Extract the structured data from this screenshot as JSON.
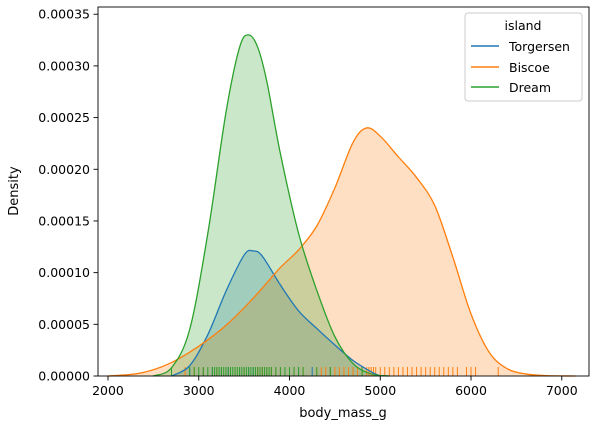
{
  "chart_data": {
    "type": "area",
    "xlabel": "body_mass_g",
    "ylabel": "Density",
    "xlim": [
      1890,
      7300
    ],
    "ylim": [
      0,
      0.000357
    ],
    "x_ticks": [
      {
        "value": 2000,
        "label": "2000"
      },
      {
        "value": 3000,
        "label": "3000"
      },
      {
        "value": 4000,
        "label": "4000"
      },
      {
        "value": 5000,
        "label": "5000"
      },
      {
        "value": 6000,
        "label": "6000"
      },
      {
        "value": 7000,
        "label": "7000"
      }
    ],
    "y_ticks": [
      {
        "value": 0,
        "label": "0.00000"
      },
      {
        "value": 5e-05,
        "label": "0.00005"
      },
      {
        "value": 0.0001,
        "label": "0.00010"
      },
      {
        "value": 0.00015,
        "label": "0.00015"
      },
      {
        "value": 0.0002,
        "label": "0.00020"
      },
      {
        "value": 0.00025,
        "label": "0.00025"
      },
      {
        "value": 0.0003,
        "label": "0.00030"
      },
      {
        "value": 0.00035,
        "label": "0.00035"
      }
    ],
    "legend": {
      "title": "island",
      "placement": "top-right"
    },
    "series": [
      {
        "name": "Torgersen",
        "color": "#1f77b4",
        "x": [
          2700,
          2900,
          3100,
          3300,
          3500,
          3600,
          3700,
          3900,
          4100,
          4300,
          4500,
          4700,
          4900,
          5000
        ],
        "y": [
          0,
          1e-05,
          4e-05,
          8.2e-05,
          0.000117,
          0.000121,
          0.000116,
          8.8e-05,
          6.3e-05,
          4.6e-05,
          3e-05,
          1.5e-05,
          4e-06,
          0
        ],
        "rug": [
          2900,
          3050,
          3150,
          3200,
          3250,
          3300,
          3325,
          3350,
          3400,
          3450,
          3500,
          3550,
          3600,
          3650,
          3700,
          3750,
          3800,
          3850,
          3900,
          4000,
          4100,
          4250,
          4450,
          4700
        ]
      },
      {
        "name": "Biscoe",
        "color": "#ff7f0e",
        "x": [
          2000,
          2300,
          2500,
          2700,
          2900,
          3100,
          3300,
          3500,
          3700,
          3900,
          4100,
          4300,
          4500,
          4700,
          4850,
          5000,
          5200,
          5400,
          5600,
          5800,
          6000,
          6200,
          6400,
          6600,
          6800,
          7000,
          7150
        ],
        "y": [
          0,
          2e-06,
          6e-06,
          1.3e-05,
          2.3e-05,
          3.5e-05,
          4.9e-05,
          6.6e-05,
          8.5e-05,
          0.000105,
          0.000122,
          0.000145,
          0.000182,
          0.000226,
          0.00024,
          0.000232,
          0.000212,
          0.000192,
          0.000165,
          0.000115,
          6e-05,
          2.3e-05,
          7e-06,
          2e-06,
          5e-07,
          1e-07,
          0
        ],
        "rug": [
          2850,
          2950,
          3050,
          3200,
          3300,
          3400,
          3500,
          3650,
          3700,
          3750,
          3800,
          3850,
          3900,
          4050,
          4150,
          4300,
          4350,
          4400,
          4450,
          4500,
          4550,
          4600,
          4650,
          4700,
          4750,
          4800,
          4850,
          4875,
          4900,
          4925,
          4950,
          5000,
          5050,
          5100,
          5150,
          5200,
          5250,
          5300,
          5350,
          5400,
          5450,
          5500,
          5550,
          5600,
          5650,
          5700,
          5750,
          5800,
          5850,
          5950,
          6000,
          6050,
          6300
        ]
      },
      {
        "name": "Dream",
        "color": "#2ca02c",
        "x": [
          2500,
          2700,
          2900,
          3100,
          3300,
          3450,
          3550,
          3650,
          3750,
          3900,
          4100,
          4300,
          4500,
          4700,
          4900,
          5100
        ],
        "y": [
          0,
          8e-06,
          4.5e-05,
          0.000138,
          0.000255,
          0.000318,
          0.00033,
          0.000318,
          0.000285,
          0.000215,
          0.000138,
          8.3e-05,
          3.8e-05,
          1.2e-05,
          2e-06,
          0
        ],
        "rug": [
          2700,
          2900,
          2950,
          3000,
          3050,
          3100,
          3150,
          3175,
          3200,
          3225,
          3250,
          3275,
          3300,
          3325,
          3350,
          3375,
          3400,
          3425,
          3450,
          3475,
          3500,
          3525,
          3550,
          3575,
          3600,
          3625,
          3650,
          3675,
          3700,
          3725,
          3750,
          3775,
          3800,
          3850,
          3900,
          3950,
          4000,
          4050,
          4100,
          4150,
          4300,
          4450,
          4800
        ]
      }
    ]
  }
}
